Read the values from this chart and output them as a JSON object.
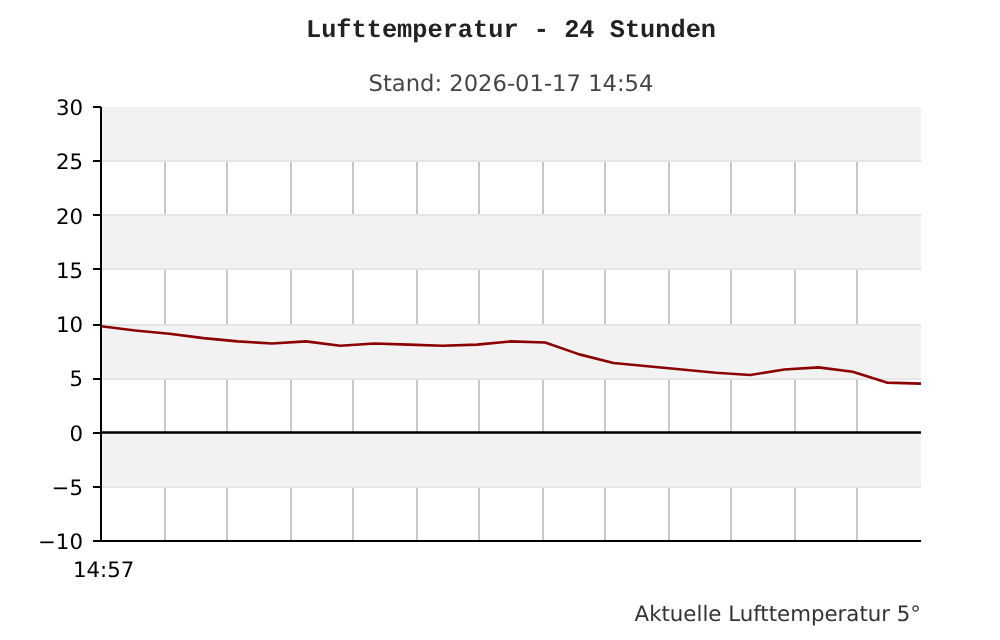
{
  "chart_data": {
    "type": "line",
    "title": "Lufttemperatur - 24 Stunden",
    "subtitle": "Stand: 2026-01-17 14:54",
    "annotations": [
      "14:57",
      "Aktuelle Lufttemperatur 5°"
    ],
    "categories": [
      null,
      null,
      null,
      null,
      null,
      null,
      null,
      null,
      null,
      null,
      null,
      null,
      null,
      null,
      null,
      null,
      null,
      null,
      null,
      null,
      null,
      null,
      null,
      null,
      null
    ],
    "series": [
      {
        "color": "#8b0000",
        "values": [
          9.8,
          9.4,
          9.1,
          8.7,
          8.4,
          8.2,
          8.4,
          8.0,
          8.2,
          8.1,
          8.0,
          8.1,
          8.4,
          8.3,
          7.2,
          6.4,
          6.1,
          5.8,
          5.5,
          5.3,
          5.8,
          6.0,
          5.6,
          4.6,
          4.5
        ]
      }
    ],
    "tick_labels": "y",
    "ylim": [
      -10,
      30
    ],
    "yticks": [
      -10,
      -5,
      0,
      5,
      10,
      15,
      20,
      25,
      30
    ],
    "ref_lines": [
      {
        "axis": "y",
        "value": 0,
        "color": "#000000"
      }
    ],
    "grid": true,
    "marker": "none",
    "line_style": "solid"
  }
}
